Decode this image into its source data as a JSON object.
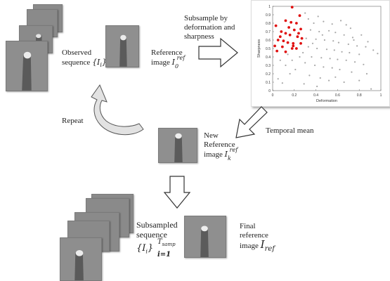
{
  "labels": {
    "observed": "Observed",
    "sequence_prefix": "sequence ",
    "sequence_set": "{I",
    "sequence_set_sub": "i",
    "sequence_set_close": "}",
    "reference": "Reference",
    "reference_image": "image ",
    "ref_symbol": "I",
    "ref_sub": "0",
    "ref_sup": "ref",
    "subsample_line1": "Subsample by",
    "subsample_line2": "deformation and",
    "subsample_line3": "sharpness",
    "temporal_mean": "Temporal mean",
    "repeat": "Repeat",
    "new_line1": "New",
    "new_line2": "Reference",
    "new_line3": "image ",
    "new_sub": "k",
    "new_sup": "ref",
    "subsampled_line1": "Subsampled",
    "subsampled_line2": "sequence",
    "subsampled_set": "{I",
    "subsampled_sub_i": "i",
    "subsampled_close": "}",
    "subsampled_sup": "T",
    "subsampled_sup_sub": "samp",
    "subsampled_lower": "i=1",
    "final_line1": "Final",
    "final_line2": "reference",
    "final_line3": "image ",
    "final_symbol": "I",
    "final_sub": "ref"
  },
  "chart_data": {
    "type": "scatter",
    "xlabel": "Deformation",
    "ylabel": "Sharpness",
    "xlim": [
      0,
      1
    ],
    "ylim": [
      0,
      1
    ],
    "xticks": [
      "0",
      "0.2",
      "0.4",
      "0.6",
      "0.8",
      "1"
    ],
    "yticks": [
      "0",
      "0.1",
      "0.2",
      "0.3",
      "0.4",
      "0.5",
      "0.6",
      "0.7",
      "0.8",
      "0.9",
      "1"
    ],
    "series": [
      {
        "color": "#e01010",
        "points": [
          [
            0.18,
            0.99
          ],
          [
            0.25,
            0.89
          ],
          [
            0.12,
            0.83
          ],
          [
            0.17,
            0.81
          ],
          [
            0.22,
            0.8
          ],
          [
            0.03,
            0.77
          ],
          [
            0.15,
            0.75
          ],
          [
            0.2,
            0.72
          ],
          [
            0.26,
            0.73
          ],
          [
            0.08,
            0.7
          ],
          [
            0.12,
            0.68
          ],
          [
            0.16,
            0.66
          ],
          [
            0.23,
            0.64
          ],
          [
            0.27,
            0.62
          ],
          [
            0.05,
            0.6
          ],
          [
            0.1,
            0.59
          ],
          [
            0.14,
            0.57
          ],
          [
            0.19,
            0.56
          ],
          [
            0.26,
            0.56
          ],
          [
            0.02,
            0.53
          ],
          [
            0.09,
            0.52
          ],
          [
            0.18,
            0.5
          ],
          [
            0.22,
            0.5
          ],
          [
            0.04,
            0.47
          ],
          [
            0.12,
            0.46
          ],
          [
            0.19,
            0.53
          ],
          [
            0.07,
            0.64
          ],
          [
            0.24,
            0.68
          ]
        ]
      },
      {
        "color": "#a8a8a8",
        "points": [
          [
            0.3,
            0.92
          ],
          [
            0.33,
            0.85
          ],
          [
            0.42,
            0.88
          ],
          [
            0.38,
            0.8
          ],
          [
            0.47,
            0.82
          ],
          [
            0.55,
            0.79
          ],
          [
            0.63,
            0.83
          ],
          [
            0.68,
            0.78
          ],
          [
            0.72,
            0.74
          ],
          [
            0.35,
            0.72
          ],
          [
            0.43,
            0.7
          ],
          [
            0.52,
            0.71
          ],
          [
            0.58,
            0.69
          ],
          [
            0.66,
            0.66
          ],
          [
            0.74,
            0.63
          ],
          [
            0.31,
            0.62
          ],
          [
            0.4,
            0.61
          ],
          [
            0.48,
            0.6
          ],
          [
            0.56,
            0.59
          ],
          [
            0.61,
            0.57
          ],
          [
            0.7,
            0.55
          ],
          [
            0.78,
            0.53
          ],
          [
            0.86,
            0.52
          ],
          [
            0.93,
            0.48
          ],
          [
            0.33,
            0.52
          ],
          [
            0.41,
            0.5
          ],
          [
            0.5,
            0.49
          ],
          [
            0.57,
            0.48
          ],
          [
            0.64,
            0.46
          ],
          [
            0.71,
            0.45
          ],
          [
            0.8,
            0.43
          ],
          [
            0.97,
            0.44
          ],
          [
            0.36,
            0.4
          ],
          [
            0.45,
            0.39
          ],
          [
            0.53,
            0.38
          ],
          [
            0.6,
            0.37
          ],
          [
            0.68,
            0.36
          ],
          [
            0.76,
            0.34
          ],
          [
            0.84,
            0.31
          ],
          [
            0.3,
            0.33
          ],
          [
            0.39,
            0.3
          ],
          [
            0.47,
            0.28
          ],
          [
            0.55,
            0.27
          ],
          [
            0.62,
            0.25
          ],
          [
            0.73,
            0.22
          ],
          [
            0.87,
            0.2
          ],
          [
            0.34,
            0.18
          ],
          [
            0.44,
            0.15
          ],
          [
            0.52,
            0.12
          ],
          [
            0.66,
            0.1
          ],
          [
            0.29,
            0.08
          ],
          [
            0.41,
            0.05
          ],
          [
            0.09,
            0.09
          ],
          [
            0.05,
            0.14
          ],
          [
            0.16,
            0.2
          ],
          [
            0.21,
            0.25
          ],
          [
            0.12,
            0.3
          ],
          [
            0.18,
            0.36
          ],
          [
            0.25,
            0.4
          ],
          [
            0.07,
            0.36
          ],
          [
            0.14,
            0.43
          ],
          [
            0.28,
            0.45
          ],
          [
            0.58,
            0.16
          ],
          [
            0.8,
            0.12
          ],
          [
            0.91,
            0.02
          ],
          [
            0.75,
            0.6
          ],
          [
            0.82,
            0.66
          ],
          [
            0.88,
            0.58
          ],
          [
            0.46,
            0.66
          ],
          [
            0.37,
            0.56
          ]
        ]
      }
    ]
  }
}
